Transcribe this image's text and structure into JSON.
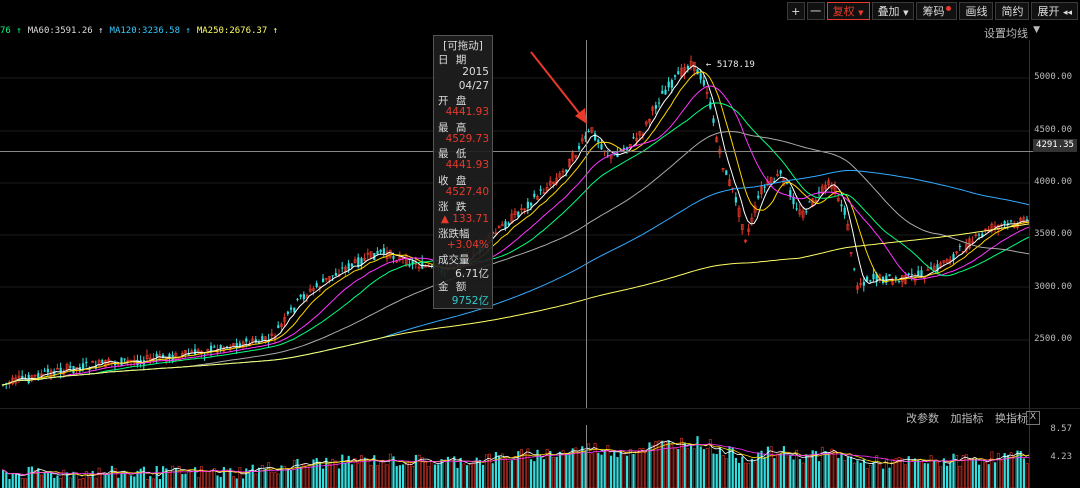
{
  "toolbar": {
    "plus": "+",
    "minus": "一",
    "fuquan": "复权",
    "diejia": "叠加",
    "chouma": "筹码",
    "huaxian": "画线",
    "jianyue": "简约",
    "zhankai": "展开"
  },
  "ma_legend": [
    {
      "text": "76 ↑",
      "color": "#00ff7f"
    },
    {
      "text": "MA60:3591.26 ↑",
      "color": "#dddddd"
    },
    {
      "text": "MA120:3236.58 ↑",
      "color": "#33ccff"
    },
    {
      "text": "MA250:2676.37 ↑",
      "color": "#ffff66"
    }
  ],
  "ma_setting": "设置均线",
  "price_axis": [
    "5000.00",
    "4500.00",
    "4000.00",
    "3500.00",
    "3000.00",
    "2500.00"
  ],
  "current_price_tag": "4291.35",
  "high_label": "5178.19",
  "tooltip": {
    "title": "[可拖动]",
    "date_label": "日 期",
    "year": "2015",
    "date": "04/27",
    "open_label": "开 盘",
    "open": "4441.93",
    "high_label": "最 高",
    "high": "4529.73",
    "low_label": "最 低",
    "low": "4441.93",
    "close_label": "收 盘",
    "close": "4527.40",
    "change_label": "涨 跌",
    "change": "▲ 133.71",
    "pct_label": "涨跌幅",
    "pct": "+3.04%",
    "volume_label": "成交量",
    "volume": "6.71亿",
    "amount_label": "金 额",
    "amount": "9752亿"
  },
  "volume_links": [
    "改参数",
    "加指标",
    "换指标"
  ],
  "volume_close": "X",
  "volume_axis": [
    "8.57",
    "4.23"
  ],
  "colors": {
    "up": "#e8392b",
    "down": "#33dddd",
    "grid": "#1a1a1a"
  }
}
